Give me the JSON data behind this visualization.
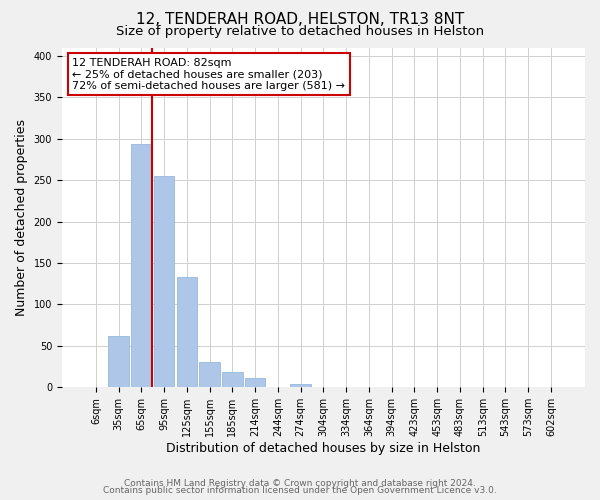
{
  "title": "12, TENDERAH ROAD, HELSTON, TR13 8NT",
  "subtitle": "Size of property relative to detached houses in Helston",
  "xlabel": "Distribution of detached houses by size in Helston",
  "ylabel": "Number of detached properties",
  "bar_labels": [
    "6sqm",
    "35sqm",
    "65sqm",
    "95sqm",
    "125sqm",
    "155sqm",
    "185sqm",
    "214sqm",
    "244sqm",
    "274sqm",
    "304sqm",
    "334sqm",
    "364sqm",
    "394sqm",
    "423sqm",
    "453sqm",
    "483sqm",
    "513sqm",
    "543sqm",
    "573sqm",
    "602sqm"
  ],
  "bar_values": [
    0,
    62,
    293,
    255,
    133,
    30,
    18,
    11,
    0,
    4,
    0,
    0,
    0,
    0,
    0,
    0,
    1,
    0,
    0,
    0,
    0
  ],
  "bar_color": "#aec6e8",
  "bar_edge_color": "#8ab0d8",
  "vline_x_index": 2,
  "vline_color": "#cc0000",
  "ann_line1": "12 TENDERAH ROAD: 82sqm",
  "ann_line2": "← 25% of detached houses are smaller (203)",
  "ann_line3": "72% of semi-detached houses are larger (581) →",
  "ylim": [
    0,
    410
  ],
  "yticks": [
    0,
    50,
    100,
    150,
    200,
    250,
    300,
    350,
    400
  ],
  "footer_line1": "Contains HM Land Registry data © Crown copyright and database right 2024.",
  "footer_line2": "Contains public sector information licensed under the Open Government Licence v3.0.",
  "background_color": "#f0f0f0",
  "plot_bg_color": "#ffffff",
  "grid_color": "#d0d0d0",
  "title_fontsize": 11,
  "subtitle_fontsize": 9.5,
  "axis_label_fontsize": 9,
  "tick_fontsize": 7,
  "ann_fontsize": 8,
  "footer_fontsize": 6.5
}
